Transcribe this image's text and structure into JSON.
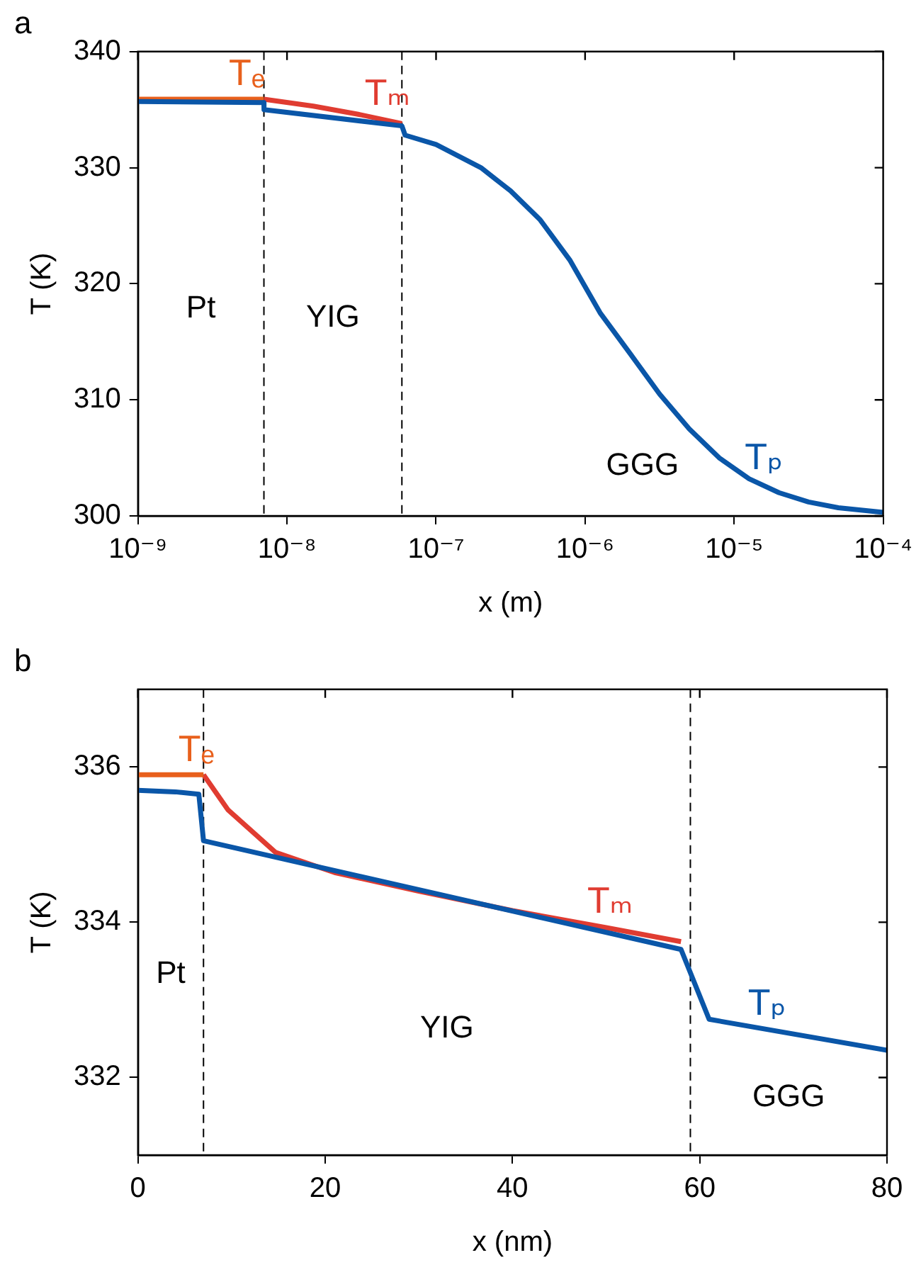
{
  "chart_data": [
    {
      "type": "line",
      "title": "a",
      "xlabel": "x (m)",
      "ylabel": "T (K)",
      "log": "x",
      "xlim": [
        1e-09,
        0.0001
      ],
      "ylim": [
        300,
        340
      ],
      "xticks": [
        {
          "value": 1e-09,
          "label": "10⁻⁹"
        },
        {
          "value": 1e-08,
          "label": "10⁻⁸"
        },
        {
          "value": 1e-07,
          "label": "10⁻⁷"
        },
        {
          "value": 1e-06,
          "label": "10⁻⁶"
        },
        {
          "value": 1e-05,
          "label": "10⁻⁵"
        },
        {
          "value": 0.0001,
          "label": "10⁻⁴"
        }
      ],
      "yticks": [
        300,
        310,
        320,
        330,
        340
      ],
      "grid": false,
      "legend": false,
      "marker": "none",
      "line_style": "solid",
      "series": [
        {
          "name": "Tₚ",
          "color": "#0a56a8",
          "x": [
            1e-09,
            7e-09,
            7.01e-09,
            5.9e-08,
            6.2e-08,
            1e-07,
            2e-07,
            3.16e-07,
            5e-07,
            7.94e-07,
            1.26e-06,
            2e-06,
            3.16e-06,
            5e-06,
            7.94e-06,
            1.26e-05,
            2e-05,
            3.16e-05,
            5e-05,
            0.0001
          ],
          "values": [
            335.7,
            335.6,
            335.0,
            333.6,
            332.8,
            332.0,
            330.0,
            328.0,
            325.5,
            322.0,
            317.5,
            314.0,
            310.5,
            307.5,
            305.0,
            303.2,
            302.0,
            301.2,
            300.7,
            300.3
          ]
        },
        {
          "name": "Tₑ",
          "color": "#e8601c",
          "x": [
            1e-09,
            7e-09
          ],
          "values": [
            335.9,
            335.9
          ]
        },
        {
          "name": "Tₘ",
          "color": "#e03c31",
          "x": [
            7e-09,
            1.5e-08,
            3e-08,
            5.9e-08
          ],
          "values": [
            335.9,
            335.3,
            334.6,
            333.8
          ]
        }
      ],
      "ref_lines": [
        {
          "axis": "x",
          "value": 7e-09,
          "color": "#000000",
          "line_style": "dashed"
        },
        {
          "axis": "x",
          "value": 5.9e-08,
          "color": "#000000",
          "line_style": "dashed"
        }
      ],
      "annotations": [
        "Pt",
        "YIG",
        "GGG"
      ]
    },
    {
      "type": "line",
      "title": "b",
      "xlabel": "x (nm)",
      "ylabel": "T (K)",
      "xlim": [
        0,
        80
      ],
      "ylim": [
        331,
        337
      ],
      "xticks": [
        0,
        20,
        40,
        60,
        80
      ],
      "yticks": [
        332,
        334,
        336
      ],
      "grid": false,
      "legend": false,
      "marker": "none",
      "line_style": "solid",
      "series": [
        {
          "name": "Tₚ",
          "color": "#0a56a8",
          "x": [
            0,
            4,
            6.5,
            7,
            58,
            61,
            80
          ],
          "values": [
            335.7,
            335.68,
            335.65,
            335.05,
            333.65,
            332.75,
            332.35
          ]
        },
        {
          "name": "Tₑ",
          "color": "#e8601c",
          "x": [
            0,
            7
          ],
          "values": [
            335.9,
            335.9
          ]
        },
        {
          "name": "Tₘ",
          "color": "#e03c31",
          "x": [
            7,
            9.6,
            14.7,
            21,
            30,
            40,
            50,
            58
          ],
          "values": [
            335.9,
            335.45,
            334.9,
            334.64,
            334.4,
            334.15,
            333.93,
            333.75
          ]
        }
      ],
      "ref_lines": [
        {
          "axis": "x",
          "value": 7,
          "color": "#000000",
          "line_style": "dashed"
        },
        {
          "axis": "x",
          "value": 59,
          "color": "#000000",
          "line_style": "dashed"
        }
      ],
      "annotations": [
        "Pt",
        "YIG",
        "GGG"
      ]
    }
  ]
}
